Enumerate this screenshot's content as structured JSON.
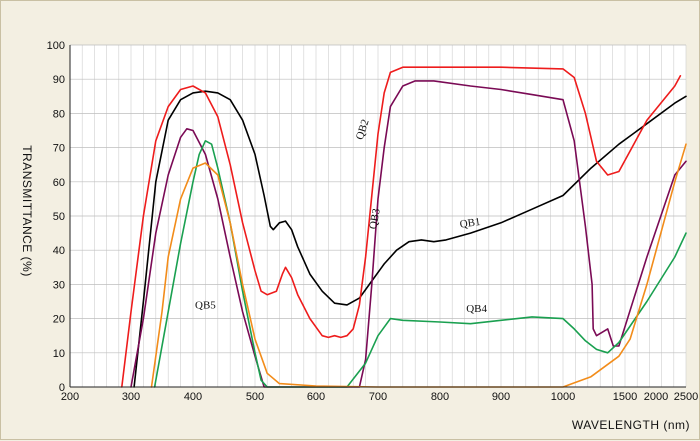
{
  "chart_data": {
    "type": "line",
    "title": "",
    "xlabel": "WAVELENGTH (nm)",
    "ylabel": "TRANSMITTANCE   (%)",
    "xlim": [
      200,
      2500
    ],
    "ylim": [
      0,
      100
    ],
    "x_note": "x axis is non-linear: 200–1000 nm uniform, then 1000–2500 compressed",
    "x_ticks": [
      200,
      300,
      400,
      500,
      600,
      700,
      800,
      900,
      1000,
      1500,
      2000,
      2500
    ],
    "x_tick_labels": [
      "200",
      "300",
      "400",
      "500",
      "600",
      "700",
      "800",
      "900",
      "1000",
      "1500",
      "2000",
      "2500"
    ],
    "y_ticks": [
      0,
      10,
      20,
      30,
      40,
      50,
      60,
      70,
      80,
      90,
      100
    ],
    "y_tick_labels": [
      "0",
      "10",
      "20",
      "30",
      "40",
      "50",
      "60",
      "70",
      "80",
      "90",
      "100"
    ],
    "grid": true,
    "series": [
      {
        "name": "QB1",
        "color": "#000000",
        "points": [
          [
            305,
            0
          ],
          [
            320,
            25
          ],
          [
            340,
            60
          ],
          [
            360,
            78
          ],
          [
            380,
            84
          ],
          [
            400,
            86
          ],
          [
            420,
            86.5
          ],
          [
            440,
            86
          ],
          [
            460,
            84
          ],
          [
            480,
            78
          ],
          [
            500,
            68
          ],
          [
            515,
            56
          ],
          [
            525,
            47
          ],
          [
            530,
            46
          ],
          [
            540,
            48
          ],
          [
            550,
            48.5
          ],
          [
            560,
            46
          ],
          [
            570,
            41
          ],
          [
            590,
            33
          ],
          [
            610,
            28
          ],
          [
            630,
            24.5
          ],
          [
            650,
            24
          ],
          [
            670,
            26
          ],
          [
            690,
            31
          ],
          [
            710,
            36
          ],
          [
            730,
            40
          ],
          [
            750,
            42.5
          ],
          [
            770,
            43
          ],
          [
            790,
            42.5
          ],
          [
            810,
            43
          ],
          [
            830,
            44
          ],
          [
            850,
            45
          ],
          [
            900,
            48
          ],
          [
            950,
            52
          ],
          [
            1000,
            56
          ],
          [
            1250,
            64
          ],
          [
            1500,
            71
          ],
          [
            1750,
            77
          ],
          [
            2000,
            83
          ],
          [
            2100,
            85
          ]
        ]
      },
      {
        "name": "QB2",
        "color": "#ee1c1c",
        "points": [
          [
            285,
            0
          ],
          [
            300,
            22
          ],
          [
            320,
            50
          ],
          [
            340,
            72
          ],
          [
            360,
            82
          ],
          [
            380,
            87
          ],
          [
            400,
            88
          ],
          [
            420,
            86
          ],
          [
            440,
            79
          ],
          [
            460,
            65
          ],
          [
            480,
            48
          ],
          [
            500,
            34
          ],
          [
            510,
            28
          ],
          [
            520,
            27
          ],
          [
            535,
            28
          ],
          [
            545,
            33
          ],
          [
            550,
            35
          ],
          [
            560,
            32
          ],
          [
            570,
            27
          ],
          [
            590,
            20
          ],
          [
            610,
            15
          ],
          [
            620,
            14.5
          ],
          [
            630,
            15
          ],
          [
            640,
            14.5
          ],
          [
            650,
            15
          ],
          [
            660,
            17
          ],
          [
            670,
            24
          ],
          [
            680,
            38
          ],
          [
            690,
            56
          ],
          [
            700,
            74
          ],
          [
            710,
            86
          ],
          [
            720,
            92
          ],
          [
            740,
            93.5
          ],
          [
            800,
            93.5
          ],
          [
            900,
            93.5
          ],
          [
            1000,
            93
          ],
          [
            1100,
            90.5
          ],
          [
            1200,
            80
          ],
          [
            1300,
            66
          ],
          [
            1400,
            62
          ],
          [
            1500,
            63
          ],
          [
            1750,
            78
          ],
          [
            2000,
            88
          ],
          [
            2050,
            91
          ]
        ]
      },
      {
        "name": "QB3",
        "color": "#7a0a55",
        "points": [
          [
            300,
            0
          ],
          [
            320,
            20
          ],
          [
            340,
            45
          ],
          [
            360,
            62
          ],
          [
            380,
            73
          ],
          [
            390,
            75.5
          ],
          [
            400,
            75
          ],
          [
            420,
            68
          ],
          [
            440,
            55
          ],
          [
            460,
            38
          ],
          [
            480,
            22
          ],
          [
            500,
            9
          ],
          [
            510,
            3
          ],
          [
            515,
            0
          ],
          [
            670,
            0
          ],
          [
            680,
            8
          ],
          [
            690,
            30
          ],
          [
            700,
            55
          ],
          [
            710,
            70
          ],
          [
            720,
            82
          ],
          [
            740,
            88
          ],
          [
            760,
            89.5
          ],
          [
            790,
            89.5
          ],
          [
            850,
            88
          ],
          [
            900,
            87
          ],
          [
            950,
            85.5
          ],
          [
            1000,
            84
          ],
          [
            1100,
            72
          ],
          [
            1200,
            47
          ],
          [
            1260,
            30
          ],
          [
            1270,
            17
          ],
          [
            1300,
            15
          ],
          [
            1350,
            16
          ],
          [
            1400,
            17
          ],
          [
            1450,
            12
          ],
          [
            1500,
            12
          ],
          [
            1750,
            38
          ],
          [
            2000,
            62
          ],
          [
            2100,
            66
          ]
        ]
      },
      {
        "name": "QB4",
        "color": "#1aa050",
        "points": [
          [
            338,
            0
          ],
          [
            360,
            22
          ],
          [
            380,
            42
          ],
          [
            400,
            60
          ],
          [
            410,
            68
          ],
          [
            420,
            72
          ],
          [
            430,
            71
          ],
          [
            440,
            64
          ],
          [
            460,
            48
          ],
          [
            480,
            28
          ],
          [
            500,
            10
          ],
          [
            510,
            2
          ],
          [
            520,
            0
          ],
          [
            650,
            0
          ],
          [
            680,
            7
          ],
          [
            700,
            15
          ],
          [
            720,
            20
          ],
          [
            740,
            19.5
          ],
          [
            800,
            19
          ],
          [
            850,
            18.5
          ],
          [
            900,
            19.5
          ],
          [
            950,
            20.5
          ],
          [
            1000,
            20
          ],
          [
            1100,
            17
          ],
          [
            1200,
            13.5
          ],
          [
            1300,
            11
          ],
          [
            1400,
            10
          ],
          [
            1500,
            13
          ],
          [
            1750,
            25
          ],
          [
            2000,
            38
          ],
          [
            2100,
            45
          ]
        ]
      },
      {
        "name": "QB5",
        "color": "#f28c1a",
        "points": [
          [
            333,
            0
          ],
          [
            350,
            22
          ],
          [
            360,
            38
          ],
          [
            380,
            55
          ],
          [
            400,
            64
          ],
          [
            420,
            65.5
          ],
          [
            440,
            62
          ],
          [
            460,
            48
          ],
          [
            480,
            30
          ],
          [
            500,
            14
          ],
          [
            520,
            4
          ],
          [
            540,
            1
          ],
          [
            600,
            0.3
          ],
          [
            700,
            0
          ],
          [
            1000,
            0
          ],
          [
            1250,
            3
          ],
          [
            1500,
            9
          ],
          [
            1600,
            14
          ],
          [
            1750,
            30
          ],
          [
            2000,
            60
          ],
          [
            2100,
            71
          ]
        ]
      }
    ],
    "annotations": [
      {
        "text": "QB1",
        "series": "QB1",
        "x": 850,
        "y": 47,
        "rotate": -8
      },
      {
        "text": "QB2",
        "series": "QB2",
        "x": 680,
        "y": 75,
        "rotate": -72
      },
      {
        "text": "QB3",
        "series": "QB3",
        "x": 700,
        "y": 49,
        "rotate": -80
      },
      {
        "text": "QB4",
        "series": "QB4",
        "x": 860,
        "y": 22,
        "rotate": 0
      },
      {
        "text": "QB5",
        "series": "QB5",
        "x": 420,
        "y": 23,
        "rotate": 0
      }
    ]
  }
}
